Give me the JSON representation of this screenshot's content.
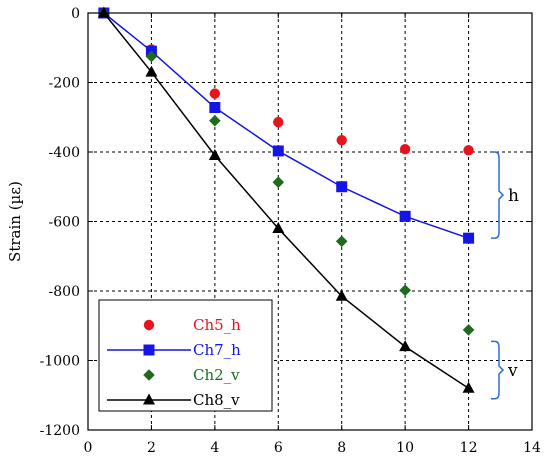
{
  "chart_data": {
    "type": "scatter",
    "title": "",
    "xlabel": "",
    "ylabel": "Strain (µε)",
    "xlim": [
      0,
      14
    ],
    "ylim": [
      -1200,
      0
    ],
    "xticks": [
      0,
      2,
      4,
      6,
      8,
      10,
      12,
      14
    ],
    "yticks": [
      0,
      -200,
      -400,
      -600,
      -800,
      -1000,
      -1200
    ],
    "grid": "dashed",
    "legend_position": "bottom-left",
    "series": [
      {
        "name": "Ch5_h",
        "color": "#e8141c",
        "marker": "circle",
        "line": false,
        "x": [
          0.5,
          2,
          4,
          6,
          8,
          10,
          12
        ],
        "y": [
          0,
          -105,
          -232,
          -314,
          -366,
          -392,
          -395
        ]
      },
      {
        "name": "Ch7_h",
        "color": "#1515e6",
        "marker": "square",
        "line": true,
        "x": [
          0.5,
          2,
          4,
          6,
          8,
          10,
          12
        ],
        "y": [
          0,
          -110,
          -272,
          -397,
          -500,
          -585,
          -648
        ]
      },
      {
        "name": "Ch2_v",
        "color": "#1e6b1e",
        "marker": "diamond",
        "line": false,
        "x": [
          0.5,
          2,
          4,
          6,
          8,
          10,
          12
        ],
        "y": [
          0,
          -125,
          -310,
          -487,
          -657,
          -798,
          -912
        ]
      },
      {
        "name": "Ch8_v",
        "color": "#000000",
        "marker": "triangle",
        "line": true,
        "x": [
          0.5,
          2,
          4,
          6,
          8,
          10,
          12
        ],
        "y": [
          0,
          -170,
          -410,
          -620,
          -815,
          -960,
          -1080
        ]
      }
    ],
    "annotations": [
      {
        "text": "h",
        "range": [
          -400,
          -648
        ],
        "color": "#2d6fd6"
      },
      {
        "text": "v",
        "range": [
          -945,
          -1110
        ],
        "color": "#2d6fd6"
      }
    ]
  }
}
